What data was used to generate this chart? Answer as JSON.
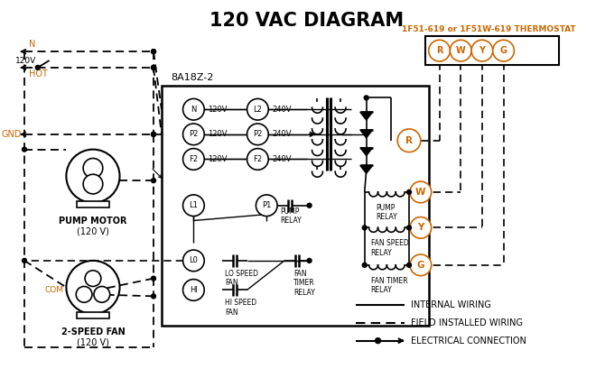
{
  "title": "120 VAC DIAGRAM",
  "title_fontsize": 15,
  "background_color": "#ffffff",
  "line_color": "#000000",
  "orange_color": "#cc6600",
  "thermostat_label": "1F51-619 or 1F51W-619 THERMOSTAT",
  "controller_label": "8A18Z-2",
  "legend_items": [
    {
      "label": "INTERNAL WIRING"
    },
    {
      "label": "FIELD INSTALLED WIRING"
    },
    {
      "label": "ELECTRICAL CONNECTION"
    }
  ]
}
